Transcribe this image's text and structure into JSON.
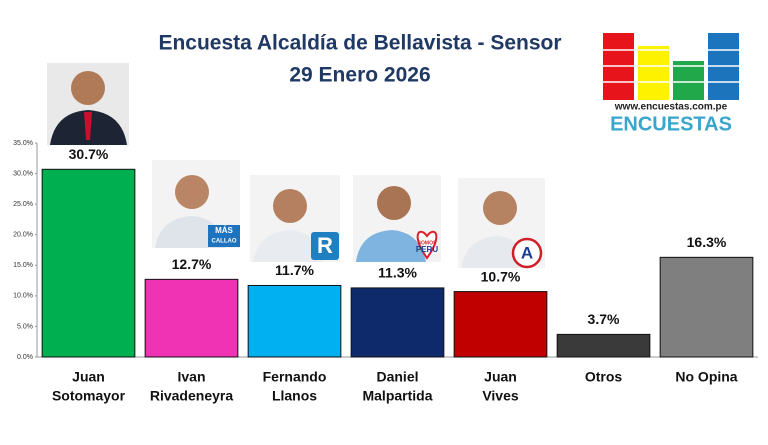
{
  "chart_data": {
    "type": "bar",
    "title": "Encuesta Alcaldía de Bellavista - Sensor",
    "subtitle": "29 Enero 2026",
    "categories": [
      [
        "Juan",
        "Sotomayor"
      ],
      [
        "Ivan",
        "Rivadeneyra"
      ],
      [
        "Fernando",
        "Llanos"
      ],
      [
        "Daniel",
        "Malpartida"
      ],
      [
        "Juan",
        "Vives"
      ],
      [
        "Otros"
      ],
      [
        "No Opina"
      ]
    ],
    "values": [
      30.7,
      12.7,
      11.7,
      11.3,
      10.7,
      3.7,
      16.3
    ],
    "value_labels": [
      "30.7%",
      "12.7%",
      "11.7%",
      "11.3%",
      "10.7%",
      "3.7%",
      "16.3%"
    ],
    "colors": [
      "#00b050",
      "#f032b4",
      "#00b0f0",
      "#0f2a6b",
      "#c00000",
      "#3a3a3a",
      "#7f7f7f"
    ],
    "ylim": [
      0,
      35
    ],
    "yticks": [
      {
        "value": 0,
        "label": "0.0%"
      },
      {
        "value": 5,
        "label": "5.0%"
      },
      {
        "value": 10,
        "label": "10.0%"
      },
      {
        "value": 15,
        "label": "15.0%"
      },
      {
        "value": 20,
        "label": "20.0%"
      },
      {
        "value": 25,
        "label": "25.0%"
      },
      {
        "value": 30,
        "label": "30.0%"
      },
      {
        "value": 35,
        "label": "35.0%"
      }
    ]
  },
  "logo": {
    "url": "www.encuestas.com.pe",
    "name": "ENCUESTAS"
  },
  "party_marks": {
    "mas": "MÁS",
    "callao": "CALLAO",
    "r": "R",
    "somos": "SOMOS",
    "peru": "PERU",
    "a": "A"
  }
}
